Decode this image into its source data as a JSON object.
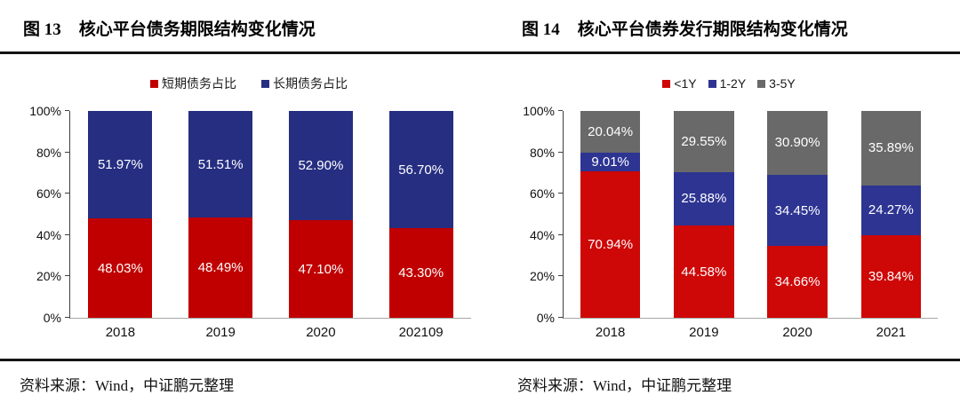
{
  "figures": [
    {
      "title_num": "图 13",
      "title_text": "核心平台债务期限结构变化情况",
      "source": "资料来源：Wind，中证鹏元整理"
    },
    {
      "title_num": "图 14",
      "title_text": "核心平台债券发行期限结构变化情况",
      "source": "资料来源：Wind，中证鹏元整理"
    }
  ],
  "chart_data": [
    {
      "type": "bar",
      "stacked": true,
      "title": "图 13 核心平台债务期限结构变化情况",
      "categories": [
        "2018",
        "2019",
        "2020",
        "202109"
      ],
      "series": [
        {
          "name": "短期债务占比",
          "color": "#C00000",
          "values": [
            48.03,
            48.49,
            47.1,
            43.3
          ],
          "labels": [
            "48.03%",
            "48.49%",
            "47.10%",
            "43.30%"
          ]
        },
        {
          "name": "长期债务占比",
          "color": "#262E82",
          "values": [
            51.97,
            51.51,
            52.9,
            56.7
          ],
          "labels": [
            "51.97%",
            "51.51%",
            "52.90%",
            "56.70%"
          ]
        }
      ],
      "ylim": [
        0,
        100
      ],
      "yticks": [
        "0%",
        "20%",
        "40%",
        "60%",
        "80%",
        "100%"
      ],
      "legend_position": "top",
      "grid": false,
      "data_label_color": "#ffffff"
    },
    {
      "type": "bar",
      "stacked": true,
      "title": "图 14 核心平台债券发行期限结构变化情况",
      "categories": [
        "2018",
        "2019",
        "2020",
        "2021"
      ],
      "series": [
        {
          "name": "<1Y",
          "color": "#CE0707",
          "values": [
            70.94,
            44.58,
            34.66,
            39.84
          ],
          "labels": [
            "70.94%",
            "44.58%",
            "34.66%",
            "39.84%"
          ]
        },
        {
          "name": "1-2Y",
          "color": "#2D3492",
          "values": [
            9.01,
            25.88,
            34.45,
            24.27
          ],
          "labels": [
            "9.01%",
            "25.88%",
            "34.45%",
            "24.27%"
          ]
        },
        {
          "name": "3-5Y",
          "color": "#696969",
          "values": [
            20.04,
            29.55,
            30.9,
            35.89
          ],
          "labels": [
            "20.04%",
            "29.55%",
            "30.90%",
            "35.89%"
          ]
        }
      ],
      "ylim": [
        0,
        100
      ],
      "yticks": [
        "0%",
        "20%",
        "40%",
        "60%",
        "80%",
        "100%"
      ],
      "legend_position": "top",
      "grid": false,
      "data_label_color": "#ffffff"
    }
  ]
}
